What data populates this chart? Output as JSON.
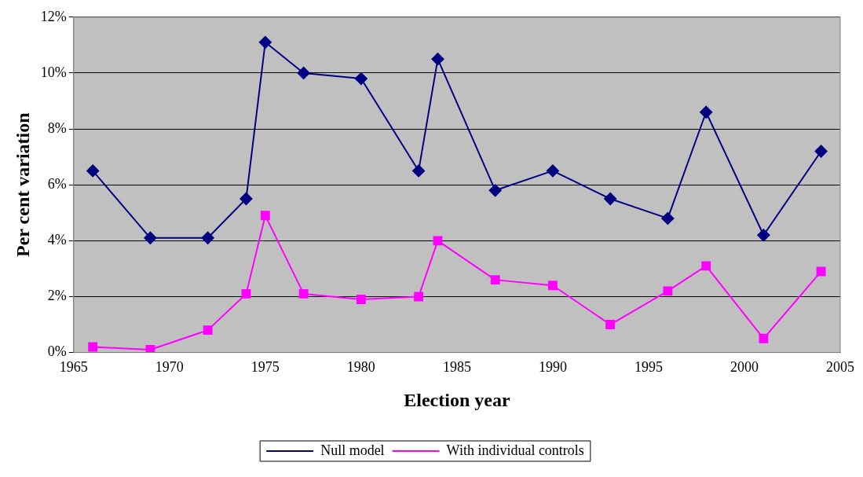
{
  "chart_data": {
    "type": "line",
    "xlabel": "Election year",
    "ylabel": "Per cent variation",
    "x": [
      1966,
      1969,
      1972,
      1974,
      1975,
      1977,
      1980,
      1983,
      1984,
      1987,
      1990,
      1993,
      1996,
      1998,
      2001,
      2004
    ],
    "series": [
      {
        "name": "Null model",
        "color": "#000080",
        "marker": "diamond",
        "values": [
          6.5,
          4.1,
          4.1,
          5.5,
          11.1,
          10.0,
          9.8,
          6.5,
          10.5,
          5.8,
          6.5,
          5.5,
          4.8,
          8.6,
          4.2,
          7.2
        ]
      },
      {
        "name": "With individual controls",
        "color": "#ff00ff",
        "marker": "square",
        "values": [
          0.2,
          0.1,
          0.8,
          2.1,
          4.9,
          2.1,
          1.9,
          2.0,
          4.0,
          2.6,
          2.4,
          1.0,
          2.2,
          3.1,
          0.5,
          2.9
        ]
      }
    ],
    "xlim": [
      1965,
      2005
    ],
    "xticks": [
      1965,
      1970,
      1975,
      1980,
      1985,
      1990,
      1995,
      2000,
      2005
    ],
    "ylim": [
      0,
      12
    ],
    "yticks": [
      {
        "value": 0,
        "label": "0%"
      },
      {
        "value": 2,
        "label": "2%"
      },
      {
        "value": 4,
        "label": "4%"
      },
      {
        "value": 6,
        "label": "6%"
      },
      {
        "value": 8,
        "label": "8%"
      },
      {
        "value": 10,
        "label": "10%"
      },
      {
        "value": 12,
        "label": "12%"
      }
    ],
    "grid": "y",
    "legend": "bottom",
    "line_style": "solid"
  }
}
